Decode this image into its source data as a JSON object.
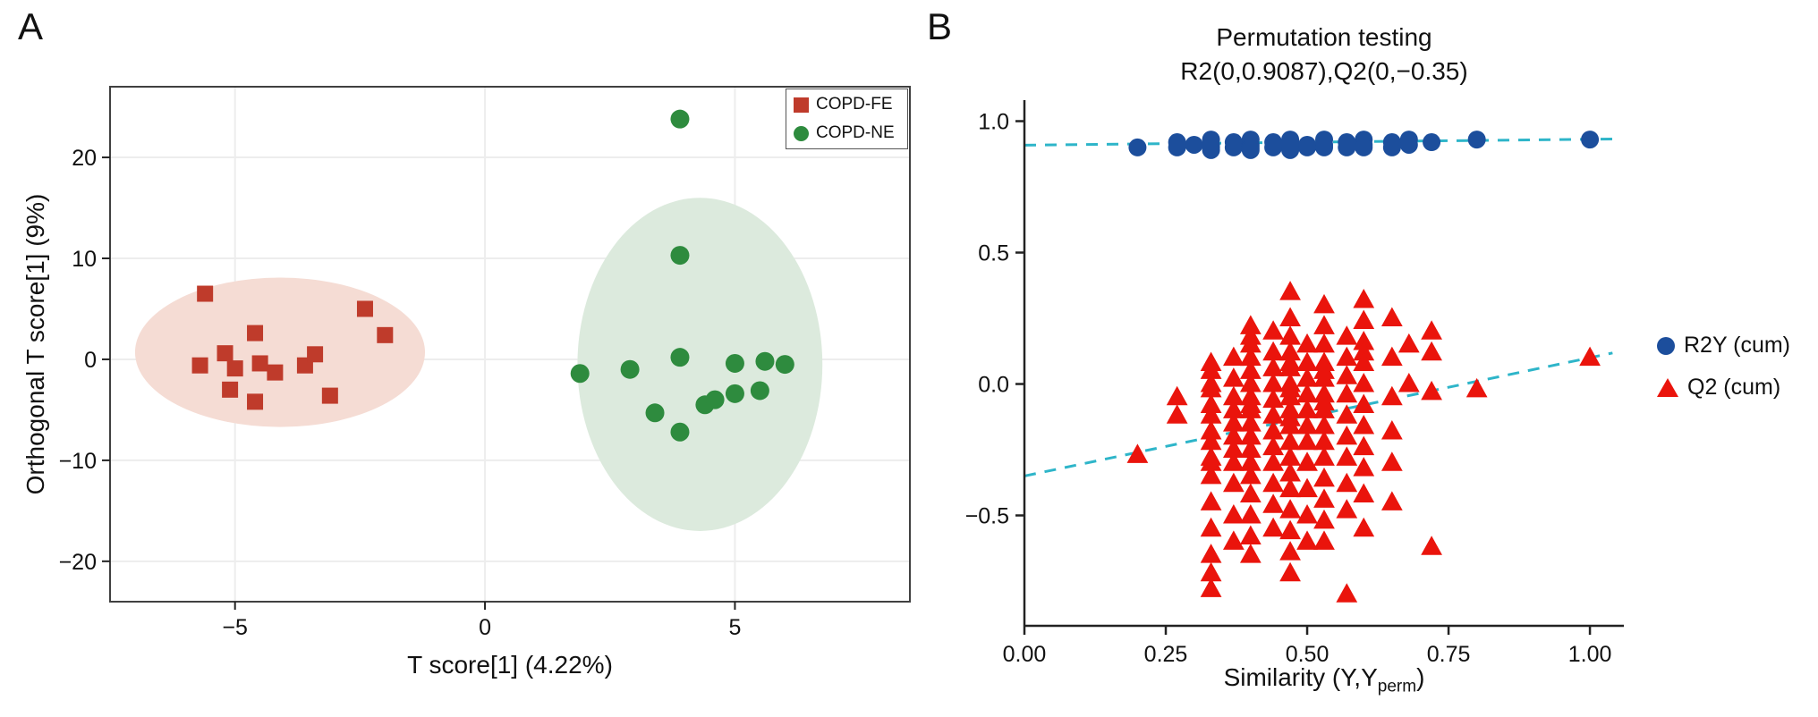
{
  "figure": {
    "background": "#ffffff"
  },
  "panelA": {
    "label": "A",
    "xlabel": "T score[1] (4.22%)",
    "ylabel": "Orthogonal T score[1] (9%)",
    "legend": [
      {
        "label": "COPD-FE",
        "marker": "square",
        "color": "#bf3b2b"
      },
      {
        "label": "COPD-NE",
        "marker": "circle",
        "color": "#2e8b3e"
      }
    ]
  },
  "panelB": {
    "label": "B",
    "title": "Permutation testing",
    "subtitle": "R2(0,0.9087),Q2(0,−0.35)",
    "xlabel_pre": "Similarity (Y,Y",
    "xlabel_sub": "perm",
    "xlabel_post": ")",
    "legend": [
      {
        "label": "R2Y (cum)",
        "marker": "circle",
        "color": "#1c4e9c"
      },
      {
        "label": "Q2 (cum)",
        "marker": "triangle",
        "color": "#ea140c"
      }
    ]
  },
  "chart_data": [
    {
      "type": "scatter",
      "title": "",
      "xlabel": "T score[1] (4.22%)",
      "ylabel": "Orthogonal T score[1] (9%)",
      "xlim": [
        -7.5,
        8.5
      ],
      "ylim": [
        -24,
        27
      ],
      "xticks": [
        -5,
        0,
        5
      ],
      "xtick_labels": [
        "−5",
        "0",
        "5"
      ],
      "yticks": [
        -20,
        -10,
        0,
        10,
        20
      ],
      "ytick_labels": [
        "−20",
        "−10",
        "0",
        "10",
        "20"
      ],
      "grid": true,
      "box": true,
      "legend_position": "top-right-inside",
      "series": [
        {
          "name": "COPD-FE",
          "marker": "square",
          "color": "#bf3b2b",
          "ellipse": {
            "cx": -4.1,
            "cy": 0.7,
            "rx": 2.9,
            "ry": 7.4,
            "fill": "#f5dcd4"
          },
          "points": [
            [
              -5.6,
              6.5
            ],
            [
              -4.6,
              2.6
            ],
            [
              -5.2,
              0.6
            ],
            [
              -5.7,
              -0.6
            ],
            [
              -5.0,
              -0.9
            ],
            [
              -4.5,
              -0.4
            ],
            [
              -4.2,
              -1.3
            ],
            [
              -5.1,
              -3.0
            ],
            [
              -4.6,
              -4.2
            ],
            [
              -3.6,
              -0.6
            ],
            [
              -3.1,
              -3.6
            ],
            [
              -2.4,
              5.0
            ],
            [
              -2.0,
              2.4
            ],
            [
              -3.4,
              0.5
            ]
          ]
        },
        {
          "name": "COPD-NE",
          "marker": "circle",
          "color": "#2e8b3e",
          "ellipse": {
            "cx": 4.3,
            "cy": -0.5,
            "rx": 2.45,
            "ry": 16.5,
            "fill": "#dceadd"
          },
          "points": [
            [
              3.9,
              23.8
            ],
            [
              3.9,
              10.3
            ],
            [
              1.9,
              -1.4
            ],
            [
              2.9,
              -1.0
            ],
            [
              3.9,
              0.2
            ],
            [
              3.4,
              -5.3
            ],
            [
              3.9,
              -7.2
            ],
            [
              4.4,
              -4.5
            ],
            [
              4.6,
              -4.0
            ],
            [
              5.0,
              -0.4
            ],
            [
              5.6,
              -0.2
            ],
            [
              5.0,
              -3.4
            ],
            [
              5.5,
              -3.1
            ],
            [
              6.0,
              -0.5
            ]
          ]
        }
      ]
    },
    {
      "type": "scatter",
      "title": "Permutation testing",
      "subtitle": "R2(0,0.9087),Q2(0,−0.35)",
      "xlabel": "Similarity (Y,Yperm)",
      "ylabel": "",
      "xlim": [
        0,
        1.06
      ],
      "ylim": [
        -0.92,
        1.08
      ],
      "xticks": [
        0,
        0.25,
        0.5,
        0.75,
        1.0
      ],
      "xtick_labels": [
        "0.00",
        "0.25",
        "0.50",
        "0.75",
        "1.00"
      ],
      "yticks": [
        -0.5,
        0,
        0.5,
        1.0
      ],
      "ytick_labels": [
        "−0.5",
        "0.0",
        "0.5",
        "1.0"
      ],
      "grid": false,
      "box": false,
      "legend_position": "right-outside",
      "trend_lines": [
        {
          "name": "R2 intercept line",
          "color": "#2eb5c9",
          "dashed": true,
          "from": [
            0,
            0.9087
          ],
          "to": [
            1.04,
            0.932
          ]
        },
        {
          "name": "Q2 intercept line",
          "color": "#2eb5c9",
          "dashed": true,
          "from": [
            0,
            -0.35
          ],
          "to": [
            1.04,
            0.118
          ]
        }
      ],
      "series": [
        {
          "name": "R2Y (cum)",
          "marker": "circle",
          "color": "#1c4e9c",
          "points": [
            [
              0.2,
              0.9
            ],
            [
              0.27,
              0.92
            ],
            [
              0.27,
              0.9
            ],
            [
              0.3,
              0.91
            ],
            [
              0.33,
              0.93
            ],
            [
              0.33,
              0.91
            ],
            [
              0.33,
              0.9
            ],
            [
              0.33,
              0.89
            ],
            [
              0.37,
              0.92
            ],
            [
              0.37,
              0.9
            ],
            [
              0.4,
              0.93
            ],
            [
              0.4,
              0.91
            ],
            [
              0.4,
              0.9
            ],
            [
              0.4,
              0.89
            ],
            [
              0.44,
              0.92
            ],
            [
              0.44,
              0.9
            ],
            [
              0.47,
              0.93
            ],
            [
              0.47,
              0.92
            ],
            [
              0.47,
              0.9
            ],
            [
              0.47,
              0.89
            ],
            [
              0.5,
              0.91
            ],
            [
              0.5,
              0.9
            ],
            [
              0.53,
              0.93
            ],
            [
              0.53,
              0.91
            ],
            [
              0.53,
              0.9
            ],
            [
              0.57,
              0.92
            ],
            [
              0.57,
              0.9
            ],
            [
              0.6,
              0.93
            ],
            [
              0.6,
              0.91
            ],
            [
              0.6,
              0.9
            ],
            [
              0.65,
              0.92
            ],
            [
              0.65,
              0.9
            ],
            [
              0.68,
              0.93
            ],
            [
              0.68,
              0.91
            ],
            [
              0.72,
              0.92
            ],
            [
              0.8,
              0.93
            ],
            [
              1.0,
              0.93
            ]
          ]
        },
        {
          "name": "Q2 (cum)",
          "marker": "triangle",
          "color": "#ea140c",
          "points": [
            [
              0.2,
              -0.27
            ],
            [
              0.27,
              -0.05
            ],
            [
              0.27,
              -0.12
            ],
            [
              0.33,
              0.08
            ],
            [
              0.33,
              0.05
            ],
            [
              0.33,
              0.0
            ],
            [
              0.33,
              -0.02
            ],
            [
              0.33,
              -0.08
            ],
            [
              0.33,
              -0.12
            ],
            [
              0.33,
              -0.18
            ],
            [
              0.33,
              -0.22
            ],
            [
              0.33,
              -0.28
            ],
            [
              0.33,
              -0.3
            ],
            [
              0.33,
              -0.35
            ],
            [
              0.33,
              -0.45
            ],
            [
              0.33,
              -0.55
            ],
            [
              0.33,
              -0.65
            ],
            [
              0.33,
              -0.72
            ],
            [
              0.33,
              -0.78
            ],
            [
              0.37,
              0.1
            ],
            [
              0.37,
              0.02
            ],
            [
              0.37,
              -0.05
            ],
            [
              0.37,
              -0.1
            ],
            [
              0.37,
              -0.15
            ],
            [
              0.37,
              -0.2
            ],
            [
              0.37,
              -0.25
            ],
            [
              0.37,
              -0.3
            ],
            [
              0.37,
              -0.38
            ],
            [
              0.37,
              -0.5
            ],
            [
              0.37,
              -0.6
            ],
            [
              0.4,
              0.22
            ],
            [
              0.4,
              0.18
            ],
            [
              0.4,
              0.15
            ],
            [
              0.4,
              0.1
            ],
            [
              0.4,
              0.05
            ],
            [
              0.4,
              0.0
            ],
            [
              0.4,
              -0.05
            ],
            [
              0.4,
              -0.08
            ],
            [
              0.4,
              -0.1
            ],
            [
              0.4,
              -0.15
            ],
            [
              0.4,
              -0.2
            ],
            [
              0.4,
              -0.25
            ],
            [
              0.4,
              -0.3
            ],
            [
              0.4,
              -0.35
            ],
            [
              0.4,
              -0.42
            ],
            [
              0.4,
              -0.5
            ],
            [
              0.4,
              -0.58
            ],
            [
              0.4,
              -0.65
            ],
            [
              0.44,
              0.2
            ],
            [
              0.44,
              0.12
            ],
            [
              0.44,
              0.06
            ],
            [
              0.44,
              0.0
            ],
            [
              0.44,
              -0.06
            ],
            [
              0.44,
              -0.12
            ],
            [
              0.44,
              -0.18
            ],
            [
              0.44,
              -0.24
            ],
            [
              0.44,
              -0.3
            ],
            [
              0.44,
              -0.38
            ],
            [
              0.44,
              -0.46
            ],
            [
              0.44,
              -0.55
            ],
            [
              0.47,
              0.35
            ],
            [
              0.47,
              0.25
            ],
            [
              0.47,
              0.18
            ],
            [
              0.47,
              0.12
            ],
            [
              0.47,
              0.08
            ],
            [
              0.47,
              0.06
            ],
            [
              0.47,
              0.0
            ],
            [
              0.47,
              -0.02
            ],
            [
              0.47,
              -0.05
            ],
            [
              0.47,
              -0.1
            ],
            [
              0.47,
              -0.13
            ],
            [
              0.47,
              -0.16
            ],
            [
              0.47,
              -0.22
            ],
            [
              0.47,
              -0.28
            ],
            [
              0.47,
              -0.34
            ],
            [
              0.47,
              -0.4
            ],
            [
              0.47,
              -0.48
            ],
            [
              0.47,
              -0.56
            ],
            [
              0.47,
              -0.64
            ],
            [
              0.47,
              -0.72
            ],
            [
              0.5,
              0.15
            ],
            [
              0.5,
              0.08
            ],
            [
              0.5,
              0.02
            ],
            [
              0.5,
              -0.04
            ],
            [
              0.5,
              -0.1
            ],
            [
              0.5,
              -0.16
            ],
            [
              0.5,
              -0.22
            ],
            [
              0.5,
              -0.3
            ],
            [
              0.5,
              -0.4
            ],
            [
              0.5,
              -0.5
            ],
            [
              0.5,
              -0.6
            ],
            [
              0.53,
              0.3
            ],
            [
              0.53,
              0.22
            ],
            [
              0.53,
              0.15
            ],
            [
              0.53,
              0.08
            ],
            [
              0.53,
              0.05
            ],
            [
              0.53,
              0.02
            ],
            [
              0.53,
              -0.04
            ],
            [
              0.53,
              -0.07
            ],
            [
              0.53,
              -0.1
            ],
            [
              0.53,
              -0.16
            ],
            [
              0.53,
              -0.22
            ],
            [
              0.53,
              -0.28
            ],
            [
              0.53,
              -0.36
            ],
            [
              0.53,
              -0.44
            ],
            [
              0.53,
              -0.52
            ],
            [
              0.53,
              -0.6
            ],
            [
              0.57,
              0.18
            ],
            [
              0.57,
              0.1
            ],
            [
              0.57,
              0.03
            ],
            [
              0.57,
              -0.04
            ],
            [
              0.57,
              -0.12
            ],
            [
              0.57,
              -0.2
            ],
            [
              0.57,
              -0.28
            ],
            [
              0.57,
              -0.38
            ],
            [
              0.57,
              -0.48
            ],
            [
              0.57,
              -0.8
            ],
            [
              0.6,
              0.32
            ],
            [
              0.6,
              0.24
            ],
            [
              0.6,
              0.16
            ],
            [
              0.6,
              0.12
            ],
            [
              0.6,
              0.08
            ],
            [
              0.6,
              0.0
            ],
            [
              0.6,
              -0.08
            ],
            [
              0.6,
              -0.16
            ],
            [
              0.6,
              -0.24
            ],
            [
              0.6,
              -0.32
            ],
            [
              0.6,
              -0.42
            ],
            [
              0.6,
              -0.55
            ],
            [
              0.65,
              0.25
            ],
            [
              0.65,
              0.1
            ],
            [
              0.65,
              -0.05
            ],
            [
              0.65,
              -0.18
            ],
            [
              0.65,
              -0.3
            ],
            [
              0.65,
              -0.45
            ],
            [
              0.68,
              0.15
            ],
            [
              0.68,
              0.0
            ],
            [
              0.72,
              0.2
            ],
            [
              0.72,
              0.12
            ],
            [
              0.72,
              -0.03
            ],
            [
              0.72,
              -0.62
            ],
            [
              0.8,
              -0.02
            ],
            [
              1.0,
              0.1
            ]
          ]
        }
      ]
    }
  ]
}
